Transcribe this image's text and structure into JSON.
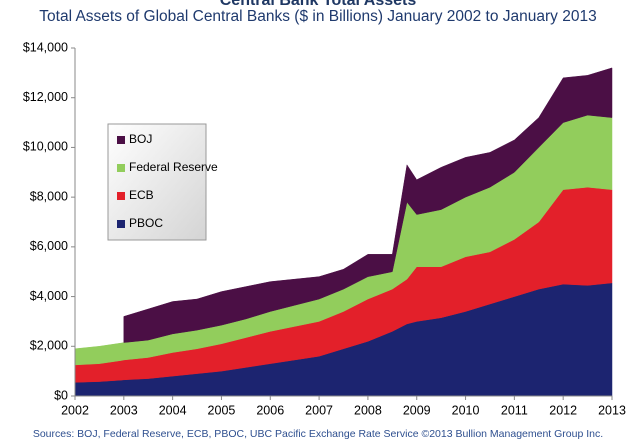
{
  "chart_data": {
    "type": "stacked_area",
    "title": "Central Bank Total Assets",
    "subtitle": "Total Assets of Global Central Banks ($ in Billions) January 2002 to January 2013",
    "source": "Sources: BOJ, Federal Reserve, ECB, PBOC, UBC Pacific Exchange Rate Service  ©2013 Bullion Management Group Inc.",
    "x": [
      2002,
      2002.5,
      2002.95,
      2003,
      2003.5,
      2004,
      2004.5,
      2005,
      2005.5,
      2006,
      2006.5,
      2007,
      2007.5,
      2008,
      2008.5,
      2008.8,
      2009,
      2009.5,
      2010,
      2010.5,
      2011,
      2011.5,
      2012,
      2012.5,
      2013
    ],
    "series": [
      {
        "name": "PBOC",
        "color": "#1c2470",
        "values": [
          550,
          580,
          640,
          650,
          700,
          800,
          900,
          1000,
          1150,
          1300,
          1450,
          1600,
          1900,
          2200,
          2600,
          2900,
          3000,
          3150,
          3400,
          3700,
          4000,
          4300,
          4500,
          4450,
          4550
        ]
      },
      {
        "name": "ECB",
        "color": "#e3202a",
        "values": [
          700,
          720,
          790,
          800,
          850,
          950,
          1000,
          1100,
          1200,
          1300,
          1350,
          1400,
          1500,
          1700,
          1700,
          1800,
          2200,
          2050,
          2200,
          2100,
          2300,
          2700,
          3800,
          3950,
          3750
        ]
      },
      {
        "name": "Federal Reserve",
        "color": "#92cd5c",
        "values": [
          650,
          700,
          700,
          700,
          700,
          750,
          750,
          750,
          750,
          800,
          850,
          900,
          900,
          900,
          700,
          3100,
          2100,
          2300,
          2400,
          2600,
          2700,
          3000,
          2700,
          2900,
          2900
        ]
      },
      {
        "name": "BOJ",
        "color": "#4b0f45",
        "values": [
          null,
          null,
          null,
          1050,
          1250,
          1300,
          1250,
          1350,
          1300,
          1200,
          1050,
          900,
          800,
          900,
          700,
          1500,
          1400,
          1700,
          1600,
          1400,
          1300,
          1200,
          1800,
          1600,
          2000
        ]
      }
    ],
    "xlim": [
      2002,
      2013
    ],
    "xticks": [
      2002,
      2003,
      2004,
      2005,
      2006,
      2007,
      2008,
      2009,
      2010,
      2011,
      2012,
      2013
    ],
    "ylim": [
      0,
      14000
    ],
    "yticks": [
      {
        "value": 0,
        "label": "$0"
      },
      {
        "value": 2000,
        "label": "$2,000"
      },
      {
        "value": 4000,
        "label": "$4,000"
      },
      {
        "value": 6000,
        "label": "$6,000"
      },
      {
        "value": 8000,
        "label": "$8,000"
      },
      {
        "value": 10000,
        "label": "$10,000"
      },
      {
        "value": 12000,
        "label": "$12,000"
      },
      {
        "value": 14000,
        "label": "$14,000"
      }
    ]
  }
}
